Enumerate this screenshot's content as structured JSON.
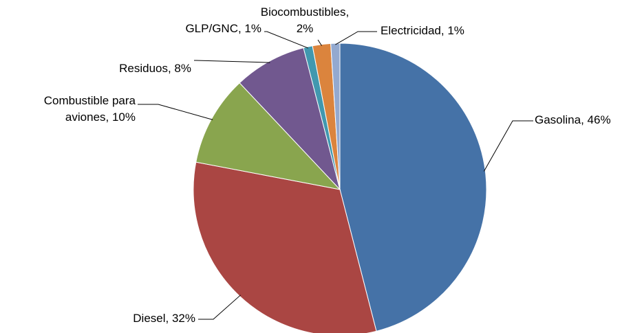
{
  "chart_data": {
    "type": "pie",
    "labels": [
      [
        "Gasolina, 46%"
      ],
      [
        "Diesel, 32%"
      ],
      [
        "Combustible para",
        "aviones, 10%"
      ],
      [
        "Residuos, 8%"
      ],
      [
        "GLP/GNC, 1%"
      ],
      [
        "Biocombustibles,",
        "2%"
      ],
      [
        "Electricidad, 1%"
      ]
    ],
    "values": [
      46,
      32,
      10,
      8,
      1,
      2,
      1
    ],
    "colors": [
      "#4572a7",
      "#aa4643",
      "#89a54e",
      "#71588f",
      "#4198af",
      "#db843d",
      "#93a9cf"
    ]
  }
}
